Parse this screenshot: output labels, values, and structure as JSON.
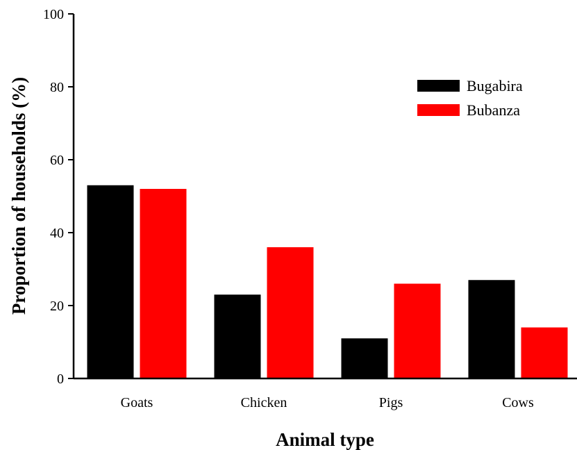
{
  "chart_data": {
    "type": "bar",
    "categories": [
      "Goats",
      "Chicken",
      "Pigs",
      "Cows"
    ],
    "series": [
      {
        "name": "Bugabira",
        "color": "#000000",
        "values": [
          53,
          23,
          11,
          27
        ]
      },
      {
        "name": "Bubanza",
        "color": "#ff0000",
        "values": [
          52,
          36,
          26,
          14
        ]
      }
    ],
    "xlabel": "Animal type",
    "ylabel": "Proportion of households (%)",
    "ylim": [
      0,
      100
    ],
    "yticks": [
      0,
      20,
      40,
      60,
      80,
      100
    ],
    "legend_position": "top-right",
    "grid": false
  }
}
